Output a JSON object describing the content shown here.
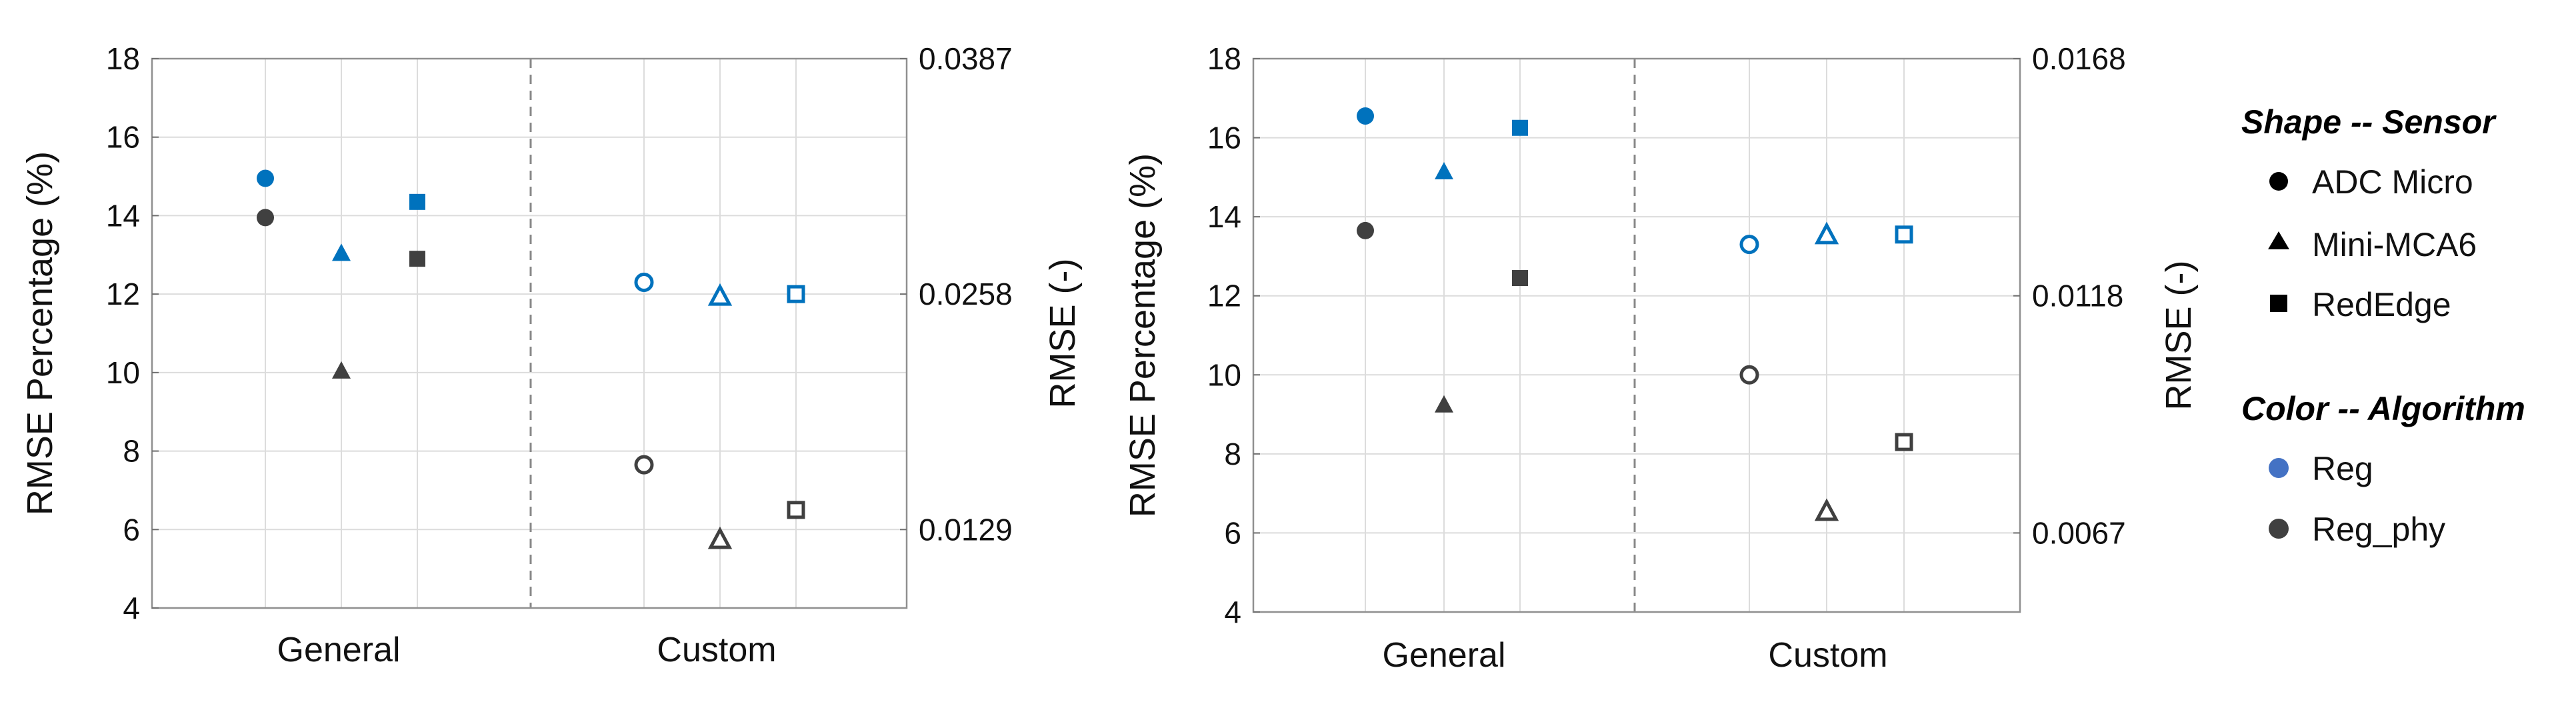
{
  "colors": {
    "Reg": "#0072bd",
    "Reg_phy": "#404040",
    "grid": "#dcdcdc",
    "frame": "#909090",
    "divider": "#888888",
    "legend_reg": "#4472c4",
    "legend_reg_phy": "#404040",
    "legend_shape": "#000000"
  },
  "shape_icons": {
    "ADC Micro": "circle",
    "Mini-MCA6": "triangle",
    "RedEdge": "square"
  },
  "fill_rule": "General markers filled, Custom markers hollow",
  "legend": {
    "shape_heading": "Shape -- Sensor",
    "shapes": [
      "ADC Micro",
      "Mini-MCA6",
      "RedEdge"
    ],
    "color_heading": "Color -- Algorithm",
    "colors": [
      "Reg",
      "Reg_phy"
    ]
  },
  "chart_data": [
    {
      "type": "scatter",
      "title": "",
      "categories": [
        "General",
        "Custom"
      ],
      "sensors": [
        "ADC Micro",
        "Mini-MCA6",
        "RedEdge"
      ],
      "ylabel": "RMSE Percentage (%)",
      "ylim": [
        4,
        18
      ],
      "yticks": [
        "4",
        "6",
        "8",
        "10",
        "12",
        "14",
        "16",
        "18"
      ],
      "y2label": "RMSE (-)",
      "y2ticks": [
        "0.0387",
        "0.0258",
        "0.0129"
      ],
      "y2tick_positions": [
        18,
        12,
        6
      ],
      "grid": true,
      "series": [
        {
          "name": "Reg",
          "values": {
            "General": [
              14.95,
              13.05,
              14.35
            ],
            "Custom": [
              12.3,
              11.95,
              12.0
            ]
          }
        },
        {
          "name": "Reg_phy",
          "values": {
            "General": [
              13.95,
              10.05,
              12.9
            ],
            "Custom": [
              7.65,
              5.75,
              6.5
            ]
          }
        }
      ]
    },
    {
      "type": "scatter",
      "title": "",
      "categories": [
        "General",
        "Custom"
      ],
      "sensors": [
        "ADC Micro",
        "Mini-MCA6",
        "RedEdge"
      ],
      "ylabel": "RMSE Percentage (%)",
      "ylim": [
        4,
        18
      ],
      "yticks": [
        "4",
        "6",
        "8",
        "10",
        "12",
        "14",
        "16",
        "18"
      ],
      "y2label": "RMSE (-)",
      "y2ticks": [
        "0.0168",
        "0.0118",
        "0.0067"
      ],
      "y2tick_positions": [
        18,
        12,
        6
      ],
      "grid": true,
      "series": [
        {
          "name": "Reg",
          "values": {
            "General": [
              16.55,
              15.15,
              16.25
            ],
            "Custom": [
              13.3,
              13.55,
              13.55
            ]
          }
        },
        {
          "name": "Reg_phy",
          "values": {
            "General": [
              13.65,
              9.25,
              12.45
            ],
            "Custom": [
              10.0,
              6.55,
              8.3
            ]
          }
        }
      ]
    }
  ]
}
